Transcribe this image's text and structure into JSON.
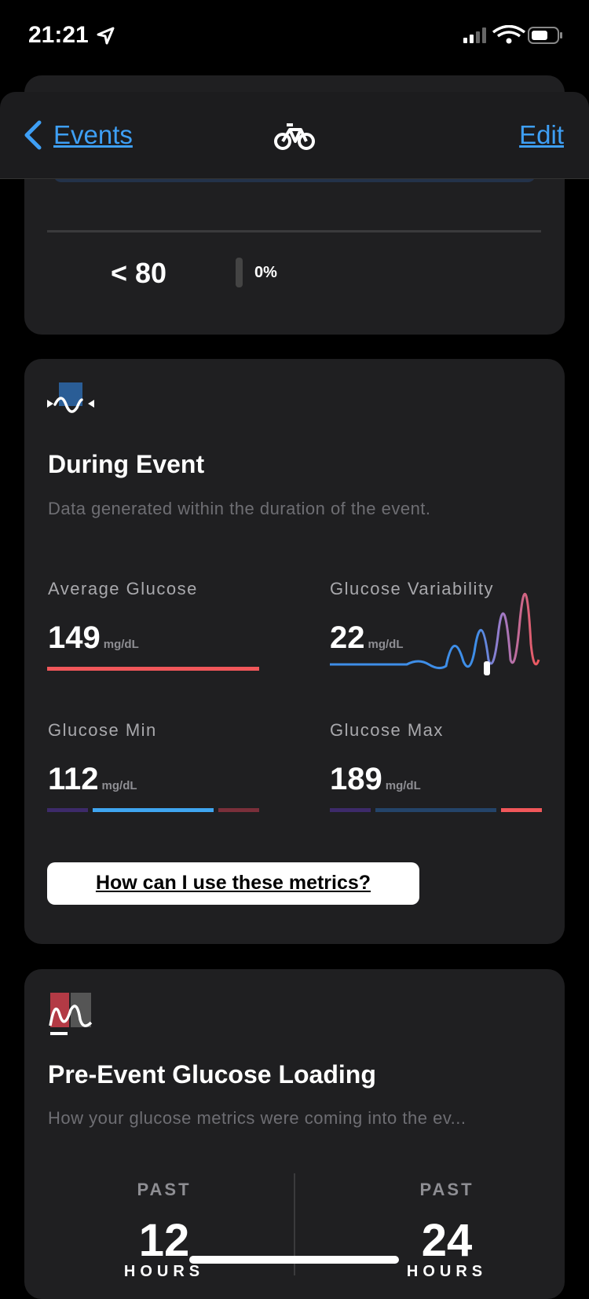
{
  "status_bar": {
    "time": "21:21"
  },
  "nav": {
    "back": "Events",
    "edit": "Edit"
  },
  "range_row": {
    "label": "< 80",
    "percent": "0%"
  },
  "during_event": {
    "title": "During Event",
    "subtitle": "Data generated within the duration of the event.",
    "metrics": [
      {
        "label": "Average Glucose",
        "value": "149",
        "unit": "mg/dL"
      },
      {
        "label": "Glucose Variability",
        "value": "22",
        "unit": "mg/dL"
      },
      {
        "label": "Glucose Min",
        "value": "112",
        "unit": "mg/dL"
      },
      {
        "label": "Glucose Max",
        "value": "189",
        "unit": "mg/dL"
      }
    ],
    "button": "How can I use these metrics?"
  },
  "pre_event": {
    "title": "Pre-Event Glucose Loading",
    "subtitle": "How your glucose metrics were coming into the ev...",
    "periods": [
      {
        "label": "PAST",
        "value": "12",
        "unit": "HOURS"
      },
      {
        "label": "PAST",
        "value": "24",
        "unit": "HOURS"
      }
    ]
  }
}
